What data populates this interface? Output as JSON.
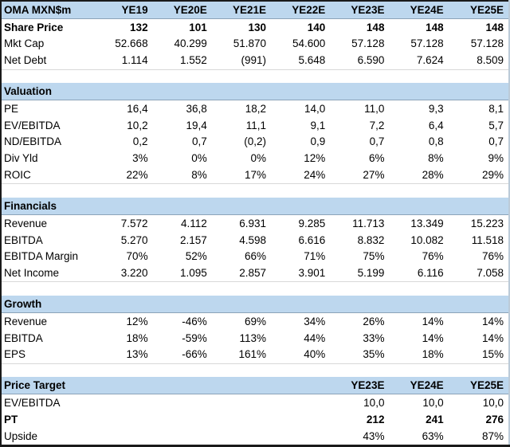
{
  "meta": {
    "title": "OMA MXN$m"
  },
  "columns": [
    "YE19",
    "YE20E",
    "YE21E",
    "YE22E",
    "YE23E",
    "YE24E",
    "YE25E"
  ],
  "top_rows": [
    {
      "label": "Share Price",
      "bold": true,
      "values": [
        "132",
        "101",
        "130",
        "140",
        "148",
        "148",
        "148"
      ]
    },
    {
      "label": "Mkt Cap",
      "values": [
        "52.668",
        "40.299",
        "51.870",
        "54.600",
        "57.128",
        "57.128",
        "57.128"
      ]
    },
    {
      "label": "Net Debt",
      "values": [
        "1.114",
        "1.552",
        "(991)",
        "5.648",
        "6.590",
        "7.624",
        "8.509"
      ]
    }
  ],
  "sections": [
    {
      "title": "Valuation",
      "rows": [
        {
          "label": "PE",
          "values": [
            "16,4",
            "36,8",
            "18,2",
            "14,0",
            "11,0",
            "9,3",
            "8,1"
          ]
        },
        {
          "label": "EV/EBITDA",
          "values": [
            "10,2",
            "19,4",
            "11,1",
            "9,1",
            "7,2",
            "6,4",
            "5,7"
          ]
        },
        {
          "label": "ND/EBITDA",
          "values": [
            "0,2",
            "0,7",
            "(0,2)",
            "0,9",
            "0,7",
            "0,8",
            "0,7"
          ]
        },
        {
          "label": "Div Yld",
          "values": [
            "3%",
            "0%",
            "0%",
            "12%",
            "6%",
            "8%",
            "9%"
          ]
        },
        {
          "label": "ROIC",
          "values": [
            "22%",
            "8%",
            "17%",
            "24%",
            "27%",
            "28%",
            "29%"
          ]
        }
      ]
    },
    {
      "title": "Financials",
      "rows": [
        {
          "label": "Revenue",
          "values": [
            "7.572",
            "4.112",
            "6.931",
            "9.285",
            "11.713",
            "13.349",
            "15.223"
          ]
        },
        {
          "label": "EBITDA",
          "values": [
            "5.270",
            "2.157",
            "4.598",
            "6.616",
            "8.832",
            "10.082",
            "11.518"
          ]
        },
        {
          "label": "EBITDA Margin",
          "values": [
            "70%",
            "52%",
            "66%",
            "71%",
            "75%",
            "76%",
            "76%"
          ]
        },
        {
          "label": "Net Income",
          "values": [
            "3.220",
            "1.095",
            "2.857",
            "3.901",
            "5.199",
            "6.116",
            "7.058"
          ]
        }
      ]
    },
    {
      "title": "Growth",
      "rows": [
        {
          "label": "Revenue",
          "values": [
            "12%",
            "-46%",
            "69%",
            "34%",
            "26%",
            "14%",
            "14%"
          ]
        },
        {
          "label": "EBITDA",
          "values": [
            "18%",
            "-59%",
            "113%",
            "44%",
            "33%",
            "14%",
            "14%"
          ]
        },
        {
          "label": "EPS",
          "values": [
            "13%",
            "-66%",
            "161%",
            "40%",
            "35%",
            "18%",
            "15%"
          ]
        }
      ]
    }
  ],
  "price_target": {
    "title": "Price Target",
    "columns": [
      "YE23E",
      "YE24E",
      "YE25E"
    ],
    "rows": [
      {
        "label": "EV/EBITDA",
        "values": [
          "10,0",
          "10,0",
          "10,0"
        ]
      },
      {
        "label": "PT",
        "bold": true,
        "values": [
          "212",
          "241",
          "276"
        ]
      },
      {
        "label": "Upside",
        "values": [
          "43%",
          "63%",
          "87%"
        ]
      }
    ]
  },
  "colors": {
    "band_bg": "#BDD7EE",
    "band_line": "#8CA3B8",
    "border_dark": "#1a1a1a",
    "text": "#000000"
  }
}
